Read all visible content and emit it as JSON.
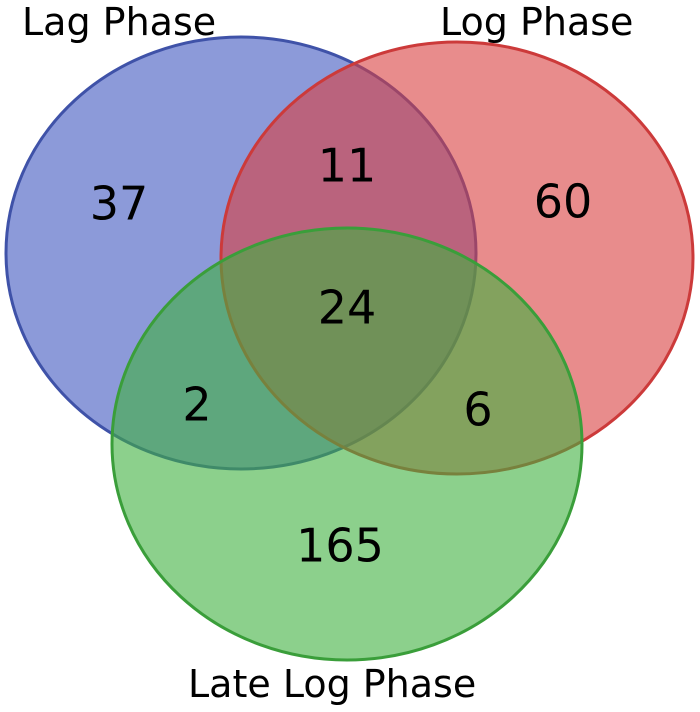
{
  "sets": [
    {
      "key": "lag",
      "label": "Lag Phase",
      "color": "#3f57bf",
      "stroke": "#3f52a8"
    },
    {
      "key": "log",
      "label": "Log Phase",
      "color": "#d9403f",
      "stroke": "#cc3a3a"
    },
    {
      "key": "late",
      "label": "Late Log Phase",
      "color": "#3fb03f",
      "stroke": "#3a9e3a"
    }
  ],
  "regions": {
    "lag_only": "37",
    "log_only": "60",
    "late_only": "165",
    "lag_log": "11",
    "lag_late": "2",
    "log_late": "6",
    "all": "24"
  }
}
